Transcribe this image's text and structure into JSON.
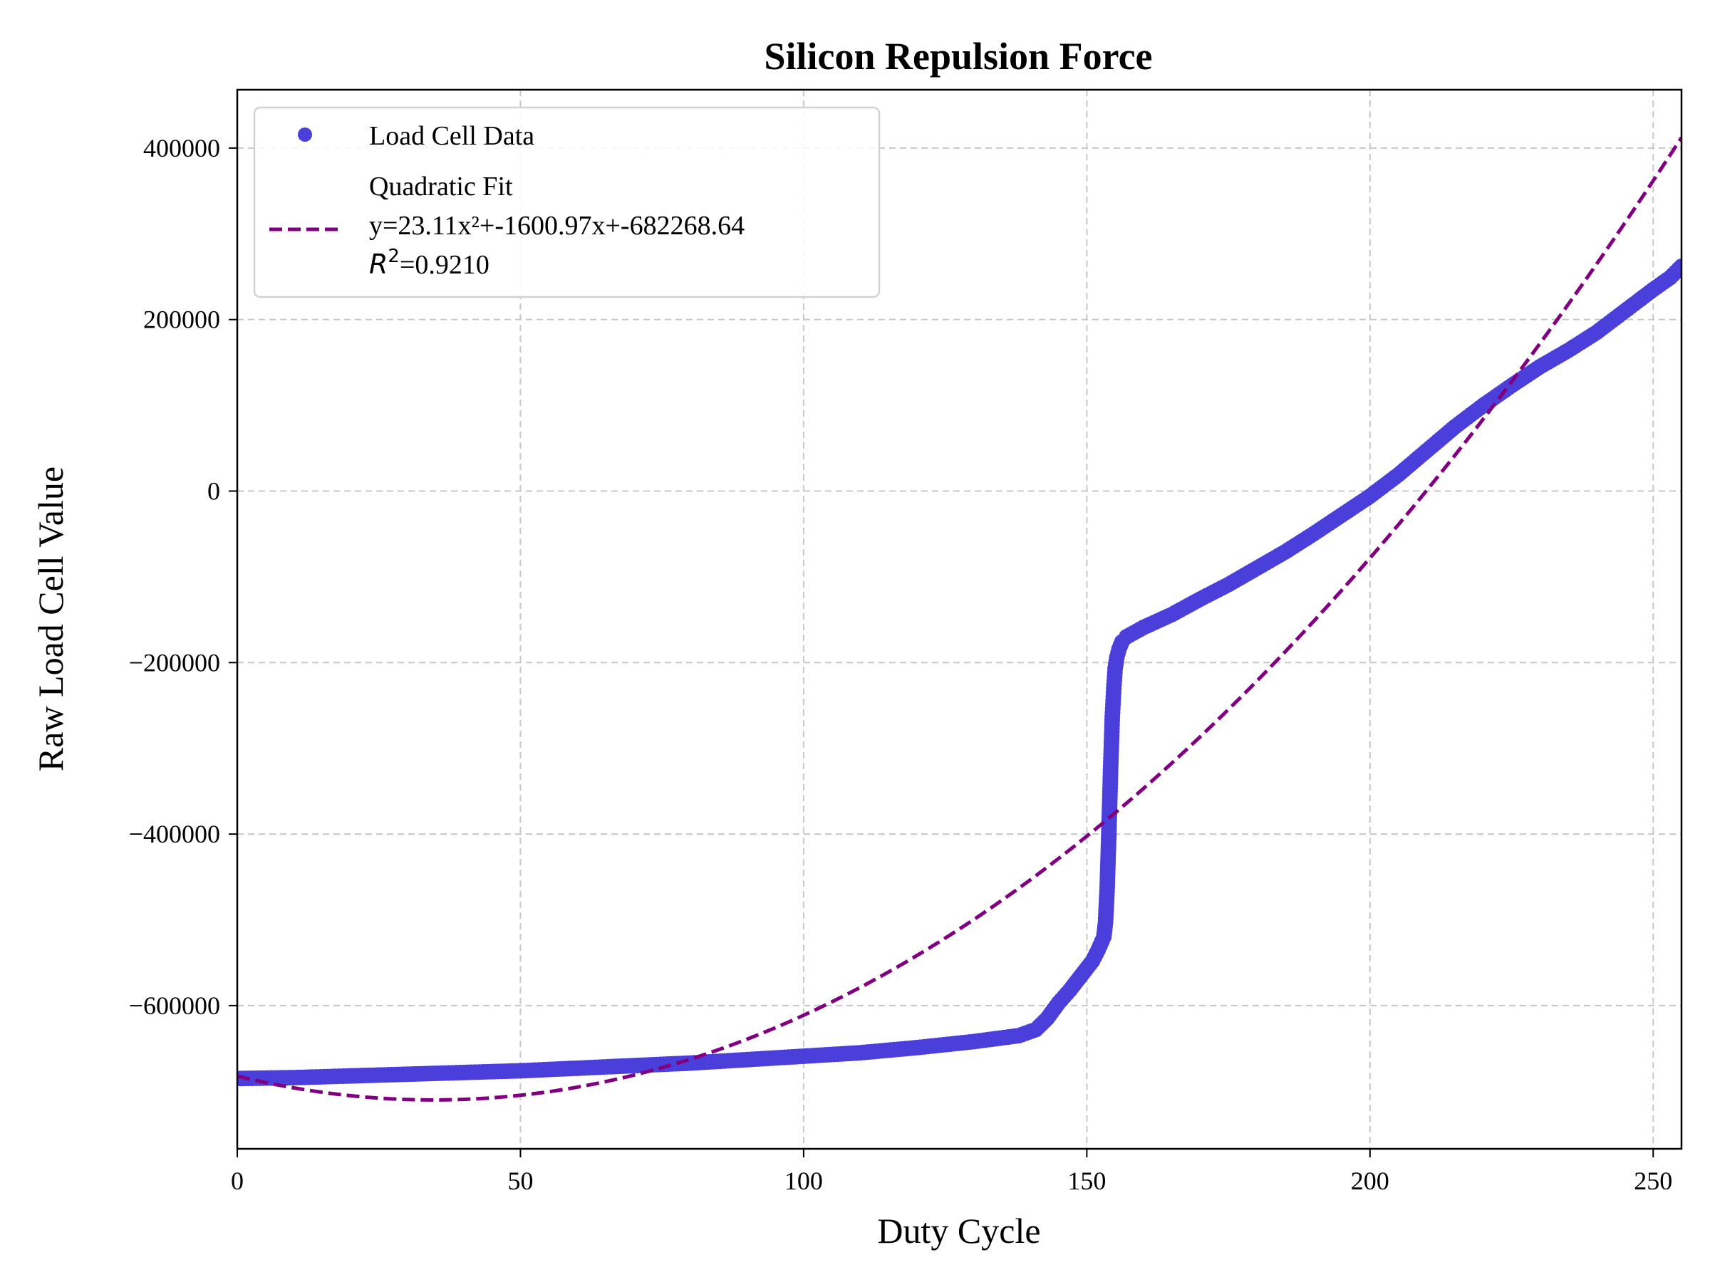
{
  "chart_data": {
    "type": "scatter",
    "title": "Silicon Repulsion Force",
    "xlabel": "Duty Cycle",
    "ylabel": "Raw Load Cell Value",
    "xlim": [
      0,
      255
    ],
    "ylim": [
      -767000,
      468000
    ],
    "x_ticks": [
      0,
      50,
      100,
      150,
      200,
      250
    ],
    "y_ticks": [
      -600000,
      -400000,
      -200000,
      0,
      200000,
      400000
    ],
    "x_tick_labels": [
      "0",
      "50",
      "100",
      "150",
      "200",
      "250"
    ],
    "y_tick_labels": [
      "−600000",
      "−400000",
      "−200000",
      "0",
      "200000",
      "400000"
    ],
    "grid": true,
    "legend_position": "top-left",
    "series": [
      {
        "name": "Load Cell Data",
        "kind": "scatter",
        "color": "#4b3fdc",
        "points": [
          [
            0,
            -685000
          ],
          [
            10,
            -684000
          ],
          [
            20,
            -682000
          ],
          [
            30,
            -680000
          ],
          [
            40,
            -678000
          ],
          [
            50,
            -676000
          ],
          [
            60,
            -673000
          ],
          [
            70,
            -670000
          ],
          [
            80,
            -667000
          ],
          [
            90,
            -663000
          ],
          [
            100,
            -659000
          ],
          [
            110,
            -655000
          ],
          [
            120,
            -649000
          ],
          [
            130,
            -642000
          ],
          [
            138,
            -635000
          ],
          [
            141,
            -628000
          ],
          [
            143,
            -615000
          ],
          [
            145,
            -597000
          ],
          [
            147,
            -582000
          ],
          [
            149,
            -565000
          ],
          [
            151,
            -548000
          ],
          [
            152,
            -535000
          ],
          [
            153,
            -520000
          ],
          [
            153.3,
            -503000
          ],
          [
            153.6,
            -462000
          ],
          [
            153.9,
            -397000
          ],
          [
            154.2,
            -325000
          ],
          [
            154.5,
            -263000
          ],
          [
            154.8,
            -226000
          ],
          [
            155.0,
            -207000
          ],
          [
            155.3,
            -194000
          ],
          [
            155.7,
            -184000
          ],
          [
            156.2,
            -176000
          ],
          [
            157,
            -170000
          ],
          [
            160,
            -159000
          ],
          [
            165,
            -144000
          ],
          [
            170,
            -126000
          ],
          [
            175,
            -109000
          ],
          [
            180,
            -90000
          ],
          [
            185,
            -71000
          ],
          [
            190,
            -50000
          ],
          [
            195,
            -28000
          ],
          [
            200,
            -6000
          ],
          [
            205,
            19000
          ],
          [
            210,
            47000
          ],
          [
            215,
            75000
          ],
          [
            220,
            100000
          ],
          [
            225,
            123000
          ],
          [
            230,
            145000
          ],
          [
            235,
            164000
          ],
          [
            240,
            185000
          ],
          [
            245,
            210000
          ],
          [
            250,
            235000
          ],
          [
            253,
            249000
          ],
          [
            255,
            262000
          ]
        ]
      },
      {
        "name": "Quadratic Fit",
        "kind": "line",
        "color": "#800080",
        "equation_text": "y=23.11x²+-1600.97x+-682268.64",
        "r2_prefix": "R",
        "r2_sup": "2",
        "r2_value": "=0.9210",
        "coefficients": {
          "a": 23.11,
          "b": -1600.97,
          "c": -682268.64
        }
      }
    ]
  }
}
